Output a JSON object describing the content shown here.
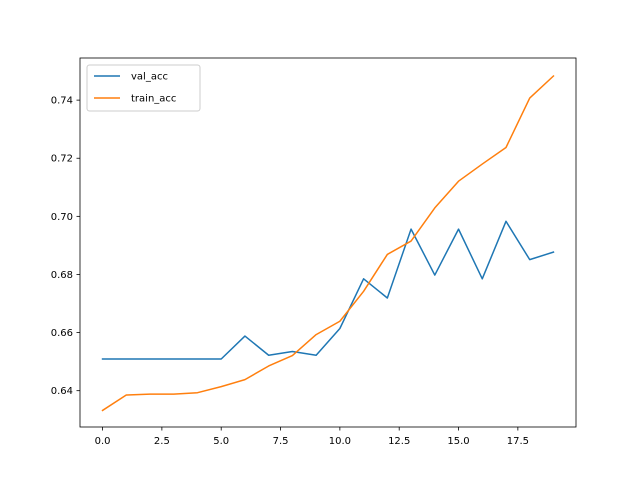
{
  "chart_data": {
    "type": "line",
    "title": "",
    "xlabel": "",
    "ylabel": "",
    "xlim": [
      -0.95,
      19.95
    ],
    "ylim": [
      0.6275,
      0.7545
    ],
    "xticks": [
      0,
      2.5,
      5,
      7.5,
      10,
      12.5,
      15,
      17.5
    ],
    "xtick_labels": [
      "0.0",
      "2.5",
      "5.0",
      "7.5",
      "10.0",
      "12.5",
      "15.0",
      "17.5"
    ],
    "yticks": [
      0.64,
      0.66,
      0.68,
      0.7,
      0.72,
      0.74
    ],
    "ytick_labels": [
      "0.64",
      "0.66",
      "0.68",
      "0.70",
      "0.72",
      "0.74"
    ],
    "grid": false,
    "legend_position": "upper-left",
    "x": [
      0,
      1,
      2,
      3,
      4,
      5,
      6,
      7,
      8,
      9,
      10,
      11,
      12,
      13,
      14,
      15,
      16,
      17,
      18,
      19
    ],
    "series": [
      {
        "name": "val_acc",
        "color": "#1f77b4",
        "values": [
          0.6509,
          0.6509,
          0.6509,
          0.6509,
          0.6509,
          0.6509,
          0.6588,
          0.6522,
          0.6535,
          0.6522,
          0.6614,
          0.6785,
          0.6719,
          0.6956,
          0.6798,
          0.6956,
          0.6785,
          0.6983,
          0.6851,
          0.6877
        ]
      },
      {
        "name": "train_acc",
        "color": "#ff7f0e",
        "values": [
          0.6332,
          0.6385,
          0.6388,
          0.6388,
          0.6393,
          0.6414,
          0.6438,
          0.6485,
          0.6521,
          0.6593,
          0.6639,
          0.6742,
          0.6869,
          0.6915,
          0.7029,
          0.7121,
          0.718,
          0.7237,
          0.7407,
          0.7483
        ]
      }
    ]
  }
}
